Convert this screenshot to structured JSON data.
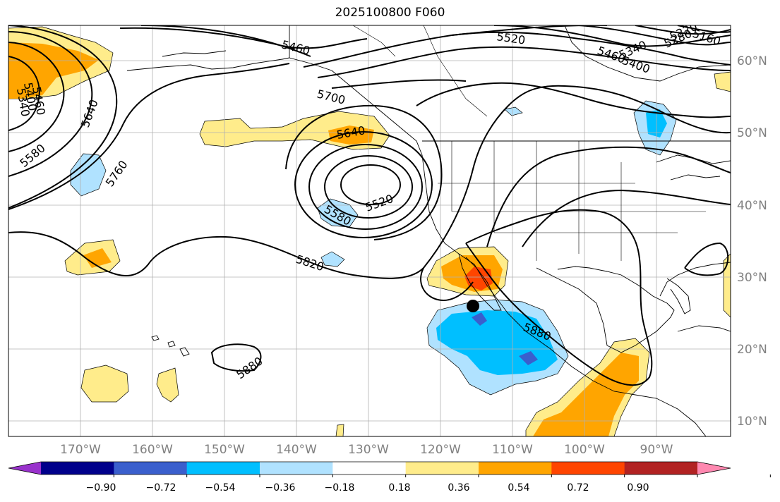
{
  "title": "2025100800 F060",
  "longitude_labels": [
    "170°W",
    "160°W",
    "150°W",
    "140°W",
    "130°W",
    "120°W",
    "110°W",
    "100°W",
    "90°W"
  ],
  "latitude_labels": [
    "60°N",
    "50°N",
    "40°N",
    "30°N",
    "20°N",
    "10°N"
  ],
  "contour_labels": [
    "5460",
    "5520",
    "5160",
    "5280",
    "5220",
    "5340",
    "5400",
    "5460",
    "5700",
    "5640",
    "5640",
    "5460",
    "5400",
    "5340",
    "5580",
    "5760",
    "5520",
    "5580",
    "5820",
    "5880",
    "5880"
  ],
  "colorbar": {
    "colors": [
      "#9932cc",
      "#00008b",
      "#3a5fcd",
      "#00bfff",
      "#b0e2ff",
      "#ffffff",
      "#ffec8b",
      "#ffa500",
      "#ff4500",
      "#b22222",
      "#ff88b0"
    ],
    "tick_labels": [
      "−0.90",
      "−0.72",
      "−0.54",
      "−0.36",
      "−0.18",
      "0.18",
      "0.36",
      "0.54",
      "0.72",
      "0.90"
    ]
  },
  "marker": "storm-center-dot"
}
